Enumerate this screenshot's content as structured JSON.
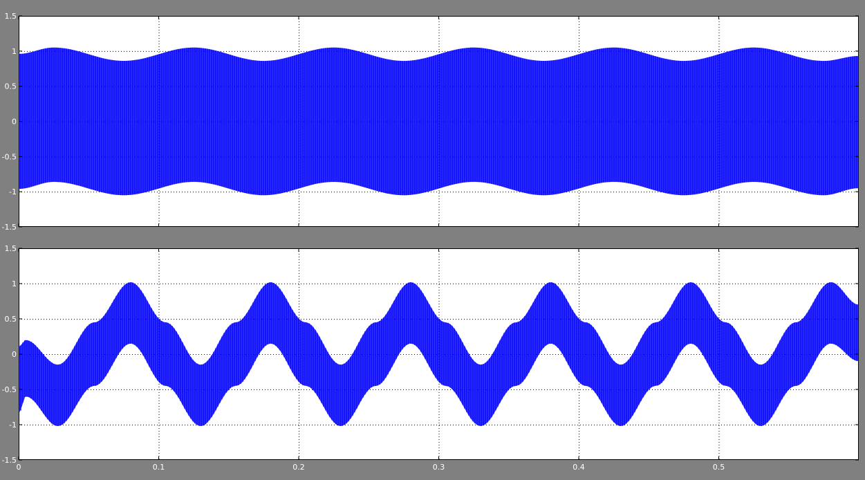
{
  "window": {
    "background": "#808080",
    "axes_background": "#ffffff",
    "trace_color": "#0000ff"
  },
  "chart_data": [
    {
      "type": "line",
      "title": "",
      "xlabel": "",
      "ylabel": "",
      "xlim": [
        0,
        0.6
      ],
      "ylim": [
        -1.5,
        1.5
      ],
      "grid": true,
      "x_ticks": [
        0,
        0.1,
        0.2,
        0.3,
        0.4,
        0.5
      ],
      "x_tick_labels": [
        "",
        "",
        "",
        "",
        "",
        ""
      ],
      "y_ticks": [
        -1.5,
        -1,
        -0.5,
        0,
        0.5,
        1,
        1.5
      ],
      "y_tick_labels": [
        "-1.5",
        "-1",
        "-0.5",
        "0",
        "0.5",
        "1",
        "1.5"
      ],
      "series": [
        {
          "color": "#0000ff",
          "description": "PWM switching signal, amplitude varying between 0.85 and 1.05, period 0.1",
          "envelope": {
            "x": [
              0,
              0.025,
              0.075,
              0.125,
              0.175,
              0.225,
              0.275,
              0.325,
              0.375,
              0.425,
              0.475,
              0.525,
              0.575,
              0.6
            ],
            "upper": [
              0.96,
              1.05,
              0.86,
              1.05,
              0.86,
              1.05,
              0.86,
              1.05,
              0.86,
              1.05,
              0.86,
              1.05,
              0.86,
              0.93
            ],
            "lower": [
              -0.96,
              -0.86,
              -1.05,
              -0.86,
              -1.05,
              -0.86,
              -1.05,
              -0.86,
              -1.05,
              -0.86,
              -1.05,
              -0.86,
              -1.05,
              -0.95
            ]
          }
        }
      ]
    },
    {
      "type": "line",
      "title": "",
      "xlabel": "",
      "ylabel": "",
      "xlim": [
        0,
        0.6
      ],
      "ylim": [
        -1.5,
        1.5
      ],
      "grid": true,
      "x_ticks": [
        0,
        0.1,
        0.2,
        0.3,
        0.4,
        0.5
      ],
      "x_tick_labels": [
        "0",
        "0.1",
        "0.2",
        "0.3",
        "0.4",
        "0.5"
      ],
      "y_ticks": [
        -1.5,
        -1,
        -0.5,
        0,
        0.5,
        1,
        1.5
      ],
      "y_tick_labels": [
        "-1.5",
        "-1",
        "-0.5",
        "0",
        "0.5",
        "1",
        "1.5"
      ],
      "series": [
        {
          "color": "#0000ff",
          "description": "Switched sinusoidal signal oscillating with period 0.1 around a slowly varying center",
          "envelope": {
            "x": [
              0,
              0.005,
              0.028,
              0.054,
              0.08,
              0.105,
              0.13,
              0.155,
              0.18,
              0.205,
              0.23,
              0.255,
              0.28,
              0.305,
              0.33,
              0.355,
              0.38,
              0.405,
              0.43,
              0.455,
              0.48,
              0.505,
              0.53,
              0.555,
              0.58,
              0.6
            ],
            "upper": [
              0.1,
              0.2,
              -0.15,
              0.45,
              1.02,
              0.45,
              -0.15,
              0.45,
              1.02,
              0.45,
              -0.15,
              0.45,
              1.02,
              0.45,
              -0.15,
              0.45,
              1.02,
              0.45,
              -0.15,
              0.45,
              1.02,
              0.45,
              -0.15,
              0.45,
              1.02,
              0.7
            ],
            "lower": [
              -0.85,
              -0.6,
              -1.02,
              -0.45,
              0.15,
              -0.45,
              -1.02,
              -0.45,
              0.15,
              -0.45,
              -1.02,
              -0.45,
              0.15,
              -0.45,
              -1.02,
              -0.45,
              0.15,
              -0.45,
              -1.02,
              -0.45,
              0.15,
              -0.45,
              -1.02,
              -0.45,
              0.15,
              -0.1
            ]
          }
        }
      ]
    }
  ]
}
